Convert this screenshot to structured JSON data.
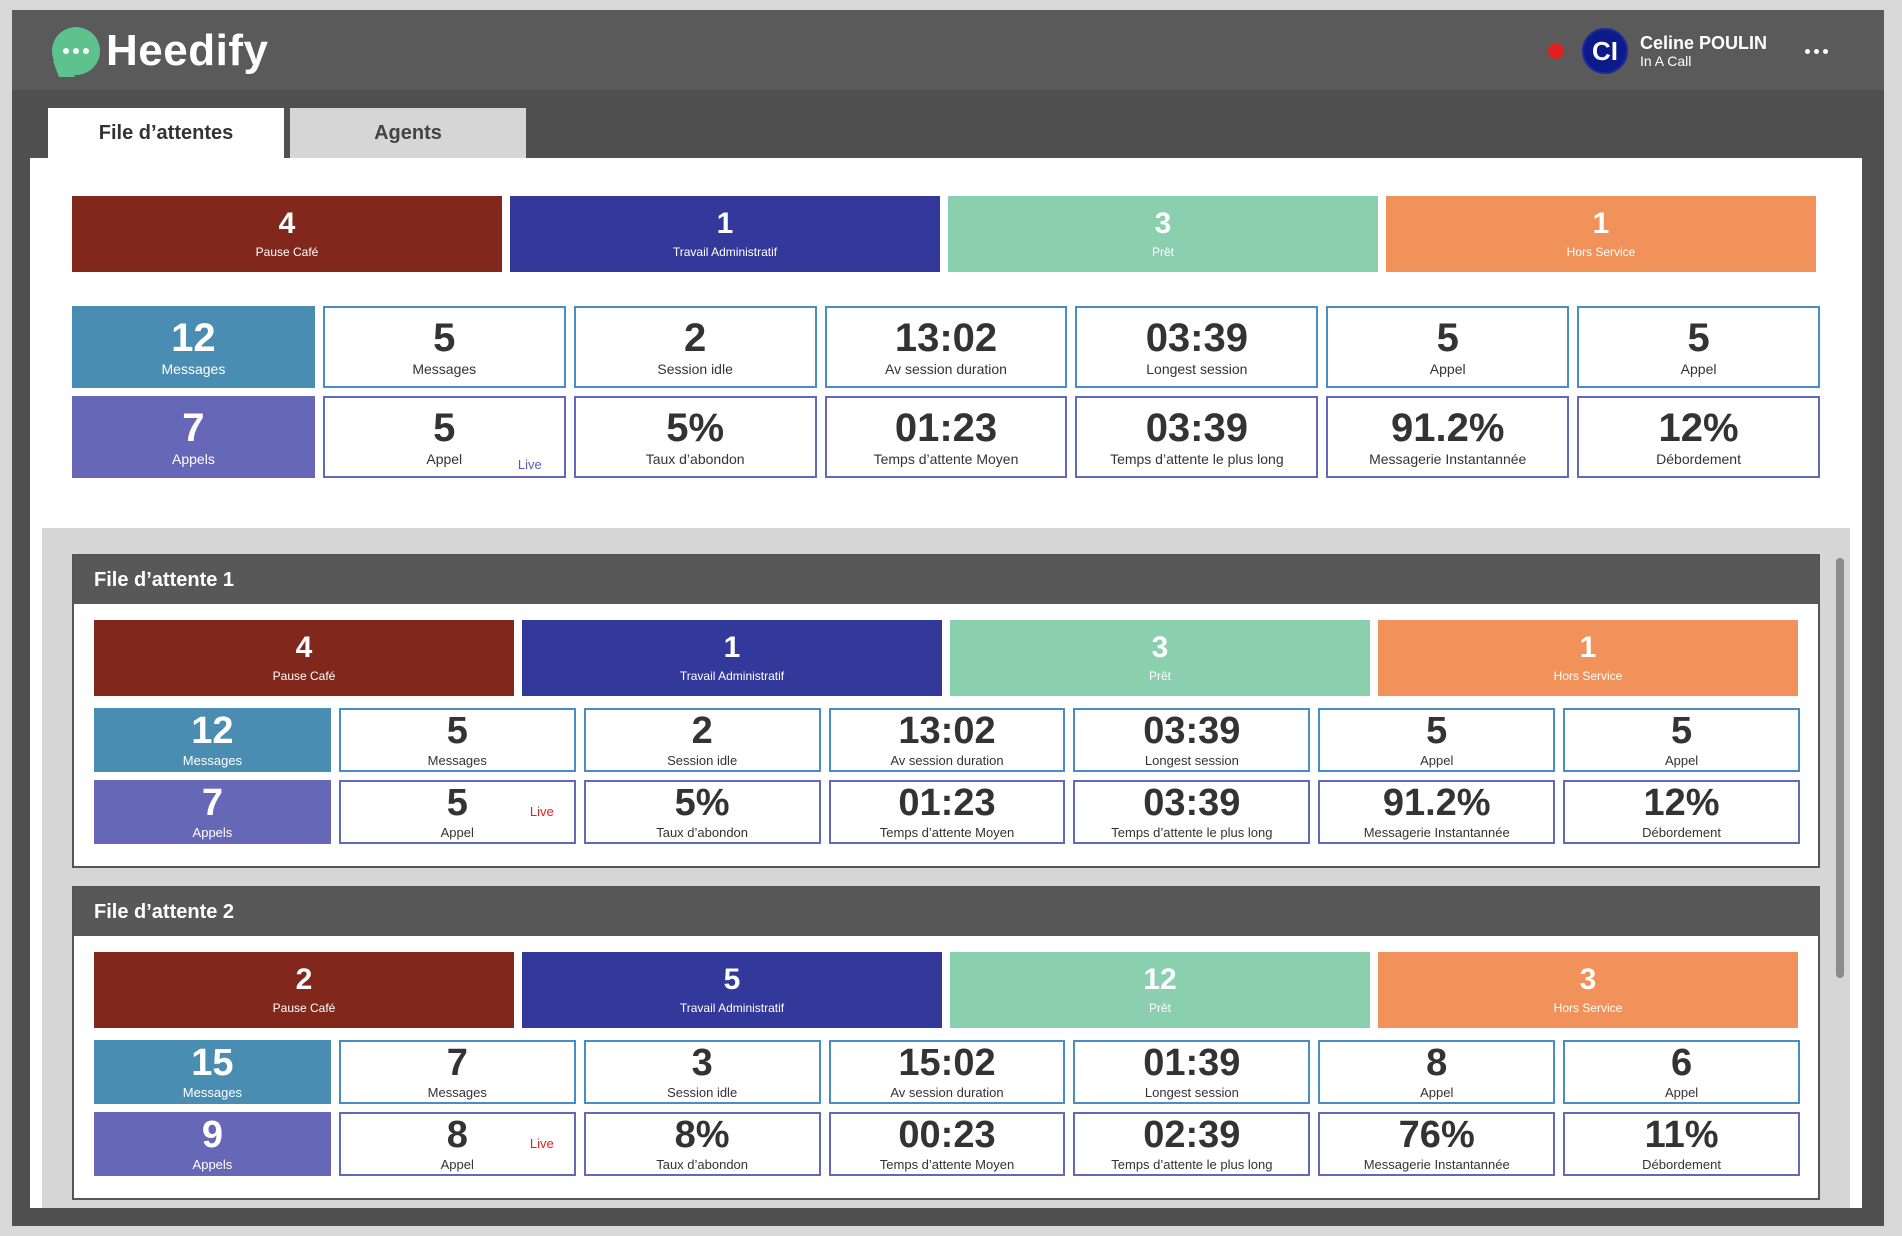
{
  "app": {
    "name": "Heedify"
  },
  "user": {
    "initials": "CI",
    "name": "Celine POULIN",
    "status": "In A Call",
    "status_color": "#e02020"
  },
  "tabs": [
    {
      "label": "File d’attentes",
      "active": true
    },
    {
      "label": "Agents",
      "active": false
    }
  ],
  "colors": {
    "pause": "#82271b",
    "admin": "#33399a",
    "pret": "#8acfae",
    "hors": "#f0925a",
    "messages": "#4a8db2",
    "appels": "#6767b7",
    "live_red": "#e02020"
  },
  "overview": {
    "status": [
      {
        "value": "4",
        "label": "Pause Café"
      },
      {
        "value": "1",
        "label": "Travail Administratif"
      },
      {
        "value": "3",
        "label": "Prêt"
      },
      {
        "value": "1",
        "label": "Hors Service"
      }
    ],
    "row1": [
      {
        "value": "12",
        "label": "Messages"
      },
      {
        "value": "5",
        "label": "Messages"
      },
      {
        "value": "2",
        "label": "Session idle"
      },
      {
        "value": "13:02",
        "label": "Av session duration"
      },
      {
        "value": "03:39",
        "label": "Longest session"
      },
      {
        "value": "5",
        "label": "Appel"
      },
      {
        "value": "5",
        "label": "Appel"
      }
    ],
    "row2": [
      {
        "value": "7",
        "label": "Appels"
      },
      {
        "value": "5",
        "label": "Appel",
        "live": "Live"
      },
      {
        "value": "5%",
        "label": "Taux d’abondon"
      },
      {
        "value": "01:23",
        "label": "Temps d’attente Moyen"
      },
      {
        "value": "03:39",
        "label": "Temps d’attente le plus long"
      },
      {
        "value": "91.2%",
        "label": "Messagerie Instantannée"
      },
      {
        "value": "12%",
        "label": "Débordement"
      }
    ]
  },
  "queues": [
    {
      "title": "File d’attente 1",
      "status": [
        {
          "value": "4",
          "label": "Pause Café"
        },
        {
          "value": "1",
          "label": "Travail Administratif"
        },
        {
          "value": "3",
          "label": "Prêt"
        },
        {
          "value": "1",
          "label": "Hors Service"
        }
      ],
      "row1": [
        {
          "value": "12",
          "label": "Messages"
        },
        {
          "value": "5",
          "label": "Messages"
        },
        {
          "value": "2",
          "label": "Session idle"
        },
        {
          "value": "13:02",
          "label": "Av session duration"
        },
        {
          "value": "03:39",
          "label": "Longest session"
        },
        {
          "value": "5",
          "label": "Appel"
        },
        {
          "value": "5",
          "label": "Appel"
        }
      ],
      "row2": [
        {
          "value": "7",
          "label": "Appels"
        },
        {
          "value": "5",
          "label": "Appel",
          "live": "Live"
        },
        {
          "value": "5%",
          "label": "Taux d’abondon"
        },
        {
          "value": "01:23",
          "label": "Temps d’attente Moyen"
        },
        {
          "value": "03:39",
          "label": "Temps d’attente le plus long"
        },
        {
          "value": "91.2%",
          "label": "Messagerie Instantannée"
        },
        {
          "value": "12%",
          "label": "Débordement"
        }
      ]
    },
    {
      "title": "File d’attente 2",
      "status": [
        {
          "value": "2",
          "label": "Pause Café"
        },
        {
          "value": "5",
          "label": "Travail Administratif"
        },
        {
          "value": "12",
          "label": "Prêt"
        },
        {
          "value": "3",
          "label": "Hors Service"
        }
      ],
      "row1": [
        {
          "value": "15",
          "label": "Messages"
        },
        {
          "value": "7",
          "label": "Messages"
        },
        {
          "value": "3",
          "label": "Session idle"
        },
        {
          "value": "15:02",
          "label": "Av session duration"
        },
        {
          "value": "01:39",
          "label": "Longest session"
        },
        {
          "value": "8",
          "label": "Appel"
        },
        {
          "value": "6",
          "label": "Appel"
        }
      ],
      "row2": [
        {
          "value": "9",
          "label": "Appels"
        },
        {
          "value": "8",
          "label": "Appel",
          "live": "Live"
        },
        {
          "value": "8%",
          "label": "Taux d’abondon"
        },
        {
          "value": "00:23",
          "label": "Temps d’attente Moyen"
        },
        {
          "value": "02:39",
          "label": "Temps d’attente le plus long"
        },
        {
          "value": "76%",
          "label": "Messagerie Instantannée"
        },
        {
          "value": "11%",
          "label": "Débordement"
        }
      ]
    }
  ]
}
